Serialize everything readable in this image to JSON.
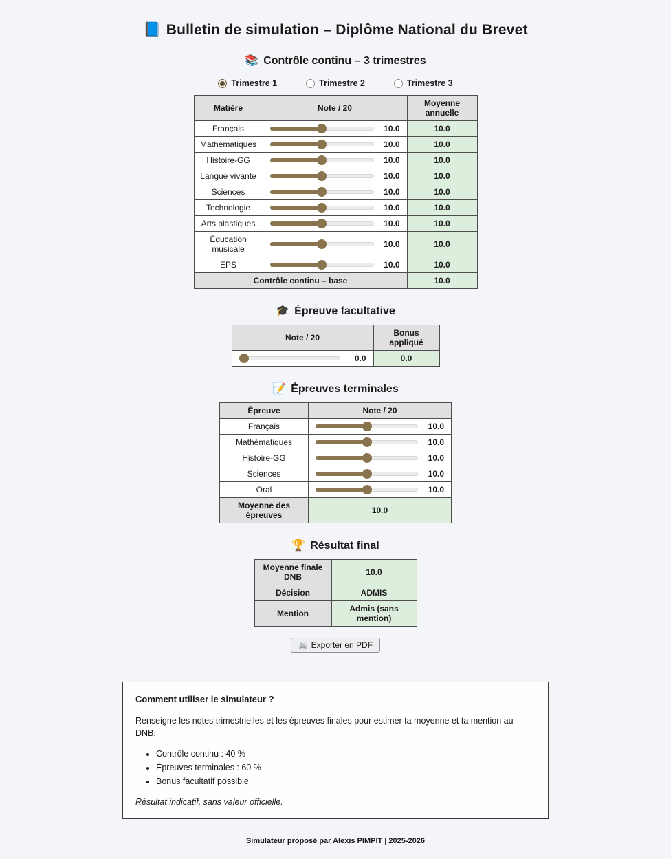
{
  "colors": {
    "accent": "#8a744e",
    "green": "#ddeedd",
    "header_gray": "#e0e0e0",
    "page_bg": "#f4f5f8"
  },
  "page": {
    "title": "Bulletin de simulation – Diplôme National du Brevet",
    "title_icon": "📘"
  },
  "controle_continu": {
    "heading": "Contrôle continu – 3 trimestres",
    "heading_icon": "📚",
    "trimestres": [
      {
        "label": "Trimestre 1",
        "selected": true
      },
      {
        "label": "Trimestre 2",
        "selected": false
      },
      {
        "label": "Trimestre 3",
        "selected": false
      }
    ],
    "table": {
      "headers": [
        "Matière",
        "Note / 20",
        "Moyenne annuelle"
      ],
      "rows": [
        {
          "matiere": "Français",
          "note": "10.0",
          "moyenne": "10.0",
          "pct": 50
        },
        {
          "matiere": "Mathématiques",
          "note": "10.0",
          "moyenne": "10.0",
          "pct": 50
        },
        {
          "matiere": "Histoire-GG",
          "note": "10.0",
          "moyenne": "10.0",
          "pct": 50
        },
        {
          "matiere": "Langue vivante",
          "note": "10.0",
          "moyenne": "10.0",
          "pct": 50
        },
        {
          "matiere": "Sciences",
          "note": "10.0",
          "moyenne": "10.0",
          "pct": 50
        },
        {
          "matiere": "Technologie",
          "note": "10.0",
          "moyenne": "10.0",
          "pct": 50
        },
        {
          "matiere": "Arts plastiques",
          "note": "10.0",
          "moyenne": "10.0",
          "pct": 50
        },
        {
          "matiere": "Éducation musicale",
          "note": "10.0",
          "moyenne": "10.0",
          "pct": 50
        },
        {
          "matiere": "EPS",
          "note": "10.0",
          "moyenne": "10.0",
          "pct": 50
        }
      ],
      "footer": {
        "label": "Contrôle continu – base",
        "value": "10.0"
      }
    }
  },
  "epreuve_facultative": {
    "heading": "Épreuve facultative",
    "heading_icon": "🎓",
    "table": {
      "headers": [
        "Note / 20",
        "Bonus appliqué"
      ],
      "note": "0.0",
      "bonus": "0.0",
      "pct": 0
    }
  },
  "epreuves_terminales": {
    "heading": "Épreuves terminales",
    "heading_icon": "📝",
    "table": {
      "headers": [
        "Épreuve",
        "Note / 20"
      ],
      "rows": [
        {
          "epreuve": "Français",
          "note": "10.0",
          "pct": 50
        },
        {
          "epreuve": "Mathématiques",
          "note": "10.0",
          "pct": 50
        },
        {
          "epreuve": "Histoire-GG",
          "note": "10.0",
          "pct": 50
        },
        {
          "epreuve": "Sciences",
          "note": "10.0",
          "pct": 50
        },
        {
          "epreuve": "Oral",
          "note": "10.0",
          "pct": 50
        }
      ],
      "footer": {
        "label": "Moyenne des épreuves",
        "value": "10.0"
      }
    }
  },
  "resultat_final": {
    "heading": "Résultat final",
    "heading_icon": "🏆",
    "rows": [
      {
        "label": "Moyenne finale DNB",
        "value": "10.0"
      },
      {
        "label": "Décision",
        "value": "ADMIS"
      },
      {
        "label": "Mention",
        "value": "Admis (sans mention)"
      }
    ]
  },
  "export_button": {
    "label": "Exporter en PDF",
    "icon": "🖨️"
  },
  "help_box": {
    "title": "Comment utiliser le simulateur ?",
    "intro": "Renseigne les notes trimestrielles et les épreuves finales pour estimer ta moyenne et ta mention au DNB.",
    "items": [
      "Contrôle continu : 40 %",
      "Épreuves terminales : 60 %",
      "Bonus facultatif possible"
    ],
    "disclaimer": "Résultat indicatif, sans valeur officielle."
  },
  "footer": {
    "text": "Simulateur proposé par Alexis PIMPIT | 2025-2026"
  }
}
